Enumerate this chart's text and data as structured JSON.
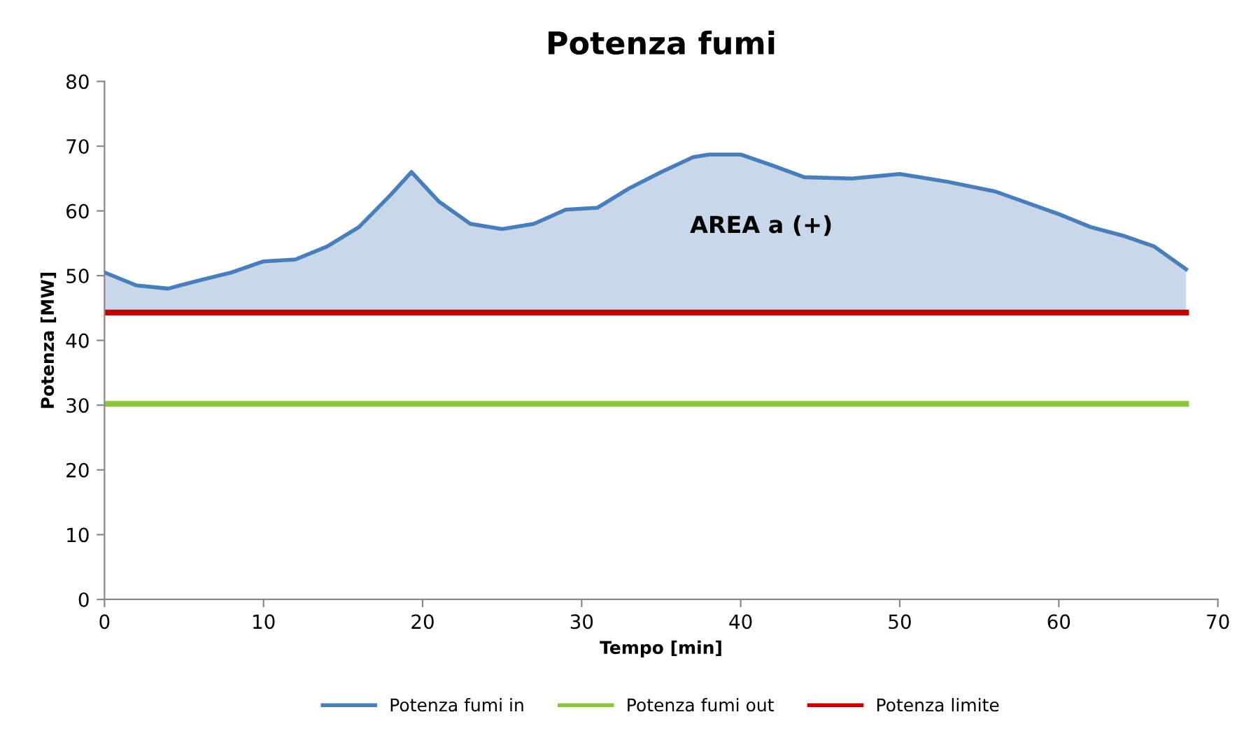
{
  "chart_data": {
    "type": "line",
    "title": "Potenza fumi",
    "xlabel": "Tempo [min]",
    "ylabel": "Potenza [MW]",
    "xlim": [
      0,
      70
    ],
    "xticks": [
      0,
      10,
      20,
      30,
      40,
      50,
      60,
      70
    ],
    "ylim": [
      0,
      80
    ],
    "yticks": [
      0,
      10,
      20,
      30,
      40,
      50,
      60,
      70,
      80
    ],
    "grid": false,
    "legend": "bottom",
    "marker": "none",
    "line_style": "solid",
    "annotations": [
      "AREA a (+)"
    ],
    "series": [
      {
        "name": "Potenza fumi in",
        "type": "area",
        "color": "#4a7ebb",
        "x": [
          0,
          2,
          4,
          6,
          8,
          10,
          12,
          14,
          16,
          18,
          19.3,
          21,
          23,
          25,
          27,
          29,
          31,
          33,
          35,
          37,
          38,
          40,
          42,
          44,
          47,
          50,
          53,
          56,
          60,
          62,
          64,
          66,
          68
        ],
        "values": [
          50.5,
          48.5,
          48,
          49.3,
          50.5,
          52.2,
          52.5,
          54.5,
          57.5,
          62.5,
          66,
          61.5,
          58,
          57.2,
          58,
          60.2,
          60.5,
          63.5,
          66,
          68.3,
          68.7,
          68.7,
          67,
          65.2,
          65,
          65.7,
          64.5,
          63,
          59.5,
          57.5,
          56.2,
          54.5,
          51
        ]
      },
      {
        "name": "Potenza fumi out",
        "color": "#8cc63f",
        "x": [
          0,
          68
        ],
        "values": [
          30.2,
          30.2
        ]
      },
      {
        "name": "Potenza limite",
        "color": "#c00000",
        "x": [
          0,
          68
        ],
        "values": [
          44.3,
          44.3
        ]
      }
    ]
  }
}
